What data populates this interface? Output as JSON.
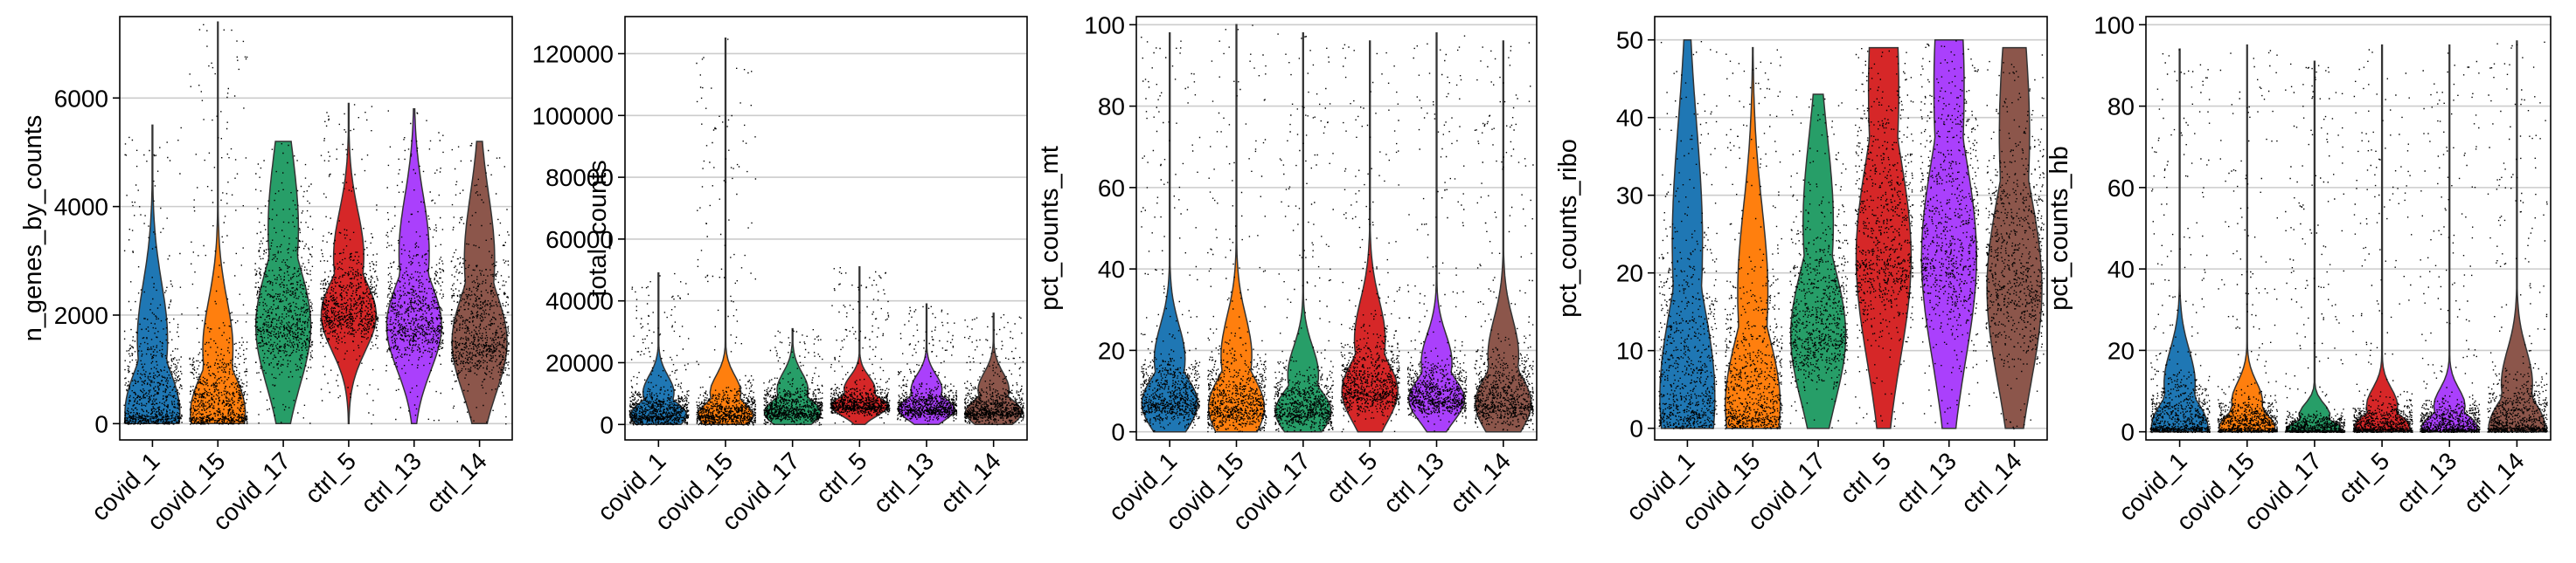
{
  "figure": {
    "colors": {
      "covid_1": "#1f77b4",
      "covid_15": "#ff7f0e",
      "covid_17": "#279e68",
      "ctrl_5": "#d62728",
      "ctrl_13": "#aa40fc",
      "ctrl_14": "#8c564b"
    }
  },
  "chart_data": [
    {
      "type": "violin",
      "ylabel": "n_genes_by_counts",
      "categories": [
        "covid_1",
        "covid_15",
        "covid_17",
        "ctrl_5",
        "ctrl_13",
        "ctrl_14"
      ],
      "ylim": [
        -300,
        7500
      ],
      "yticks": [
        0,
        2000,
        4000,
        6000
      ],
      "ytick_labels": [
        "0",
        "2000",
        "4000",
        "6000"
      ],
      "grid": true,
      "series": [
        {
          "category": "covid_1",
          "max": 5500,
          "mode": 200,
          "spread": 1500
        },
        {
          "category": "covid_15",
          "max": 7400,
          "mode": 200,
          "spread": 1300
        },
        {
          "category": "covid_17",
          "max": 5200,
          "mode": 1800,
          "spread": 2000
        },
        {
          "category": "ctrl_5",
          "max": 5900,
          "mode": 2000,
          "spread": 1200
        },
        {
          "category": "ctrl_13",
          "max": 5800,
          "mode": 1800,
          "spread": 1500
        },
        {
          "category": "ctrl_14",
          "max": 5200,
          "mode": 1500,
          "spread": 1700
        }
      ]
    },
    {
      "type": "violin",
      "ylabel": "total_counts",
      "categories": [
        "covid_1",
        "covid_15",
        "covid_17",
        "ctrl_5",
        "ctrl_13",
        "ctrl_14"
      ],
      "ylim": [
        -5000,
        132000
      ],
      "yticks": [
        0,
        20000,
        40000,
        60000,
        80000,
        100000,
        120000
      ],
      "ytick_labels": [
        "0",
        "20000",
        "40000",
        "60000",
        "80000",
        "100000",
        "120000"
      ],
      "grid": true,
      "series": [
        {
          "category": "covid_1",
          "max": 49000,
          "mode": 3000,
          "spread": 8000
        },
        {
          "category": "covid_15",
          "max": 125000,
          "mode": 3000,
          "spread": 8000
        },
        {
          "category": "covid_17",
          "max": 31000,
          "mode": 4000,
          "spread": 8000
        },
        {
          "category": "ctrl_5",
          "max": 51000,
          "mode": 6000,
          "spread": 6000
        },
        {
          "category": "ctrl_13",
          "max": 39000,
          "mode": 5000,
          "spread": 7000
        },
        {
          "category": "ctrl_14",
          "max": 36000,
          "mode": 4000,
          "spread": 8000
        }
      ]
    },
    {
      "type": "violin",
      "ylabel": "pct_counts_mt",
      "categories": [
        "covid_1",
        "covid_15",
        "covid_17",
        "ctrl_5",
        "ctrl_13",
        "ctrl_14"
      ],
      "ylim": [
        -2,
        102
      ],
      "yticks": [
        0,
        20,
        40,
        60,
        80,
        100
      ],
      "ytick_labels": [
        "0",
        "20",
        "40",
        "60",
        "80",
        "100"
      ],
      "grid": true,
      "series": [
        {
          "category": "covid_1",
          "max": 98,
          "mode": 7,
          "spread": 12
        },
        {
          "category": "covid_15",
          "max": 100,
          "mode": 6,
          "spread": 14
        },
        {
          "category": "covid_17",
          "max": 98,
          "mode": 5,
          "spread": 10
        },
        {
          "category": "ctrl_5",
          "max": 96,
          "mode": 10,
          "spread": 14
        },
        {
          "category": "ctrl_13",
          "max": 98,
          "mode": 8,
          "spread": 10
        },
        {
          "category": "ctrl_14",
          "max": 96,
          "mode": 7,
          "spread": 13
        }
      ]
    },
    {
      "type": "violin",
      "ylabel": "pct_counts_ribo",
      "categories": [
        "covid_1",
        "covid_15",
        "covid_17",
        "ctrl_5",
        "ctrl_13",
        "ctrl_14"
      ],
      "ylim": [
        -1.5,
        53
      ],
      "yticks": [
        0,
        10,
        20,
        30,
        40,
        50
      ],
      "ytick_labels": [
        "0",
        "10",
        "20",
        "30",
        "40",
        "50"
      ],
      "grid": true,
      "series": [
        {
          "category": "covid_1",
          "max": 50,
          "mode": 4,
          "spread": 22
        },
        {
          "category": "covid_15",
          "max": 49,
          "mode": 3,
          "spread": 16
        },
        {
          "category": "covid_17",
          "max": 43,
          "mode": 12,
          "spread": 16
        },
        {
          "category": "ctrl_5",
          "max": 49,
          "mode": 22,
          "spread": 24
        },
        {
          "category": "ctrl_13",
          "max": 50,
          "mode": 22,
          "spread": 24
        },
        {
          "category": "ctrl_14",
          "max": 49,
          "mode": 18,
          "spread": 22
        }
      ]
    },
    {
      "type": "violin",
      "ylabel": "pct_counts_hb",
      "categories": [
        "covid_1",
        "covid_15",
        "covid_17",
        "ctrl_5",
        "ctrl_13",
        "ctrl_14"
      ],
      "ylim": [
        -2,
        102
      ],
      "yticks": [
        0,
        20,
        40,
        60,
        80,
        100
      ],
      "ytick_labels": [
        "0",
        "20",
        "40",
        "60",
        "80",
        "100"
      ],
      "grid": true,
      "series": [
        {
          "category": "covid_1",
          "max": 94,
          "mode": 1,
          "spread": 12
        },
        {
          "category": "covid_15",
          "max": 95,
          "mode": 1,
          "spread": 7
        },
        {
          "category": "covid_17",
          "max": 91,
          "mode": 0.5,
          "spread": 4
        },
        {
          "category": "ctrl_5",
          "max": 95,
          "mode": 1,
          "spread": 6
        },
        {
          "category": "ctrl_13",
          "max": 95,
          "mode": 1,
          "spread": 6
        },
        {
          "category": "ctrl_14",
          "max": 96,
          "mode": 1,
          "spread": 12
        }
      ]
    }
  ]
}
